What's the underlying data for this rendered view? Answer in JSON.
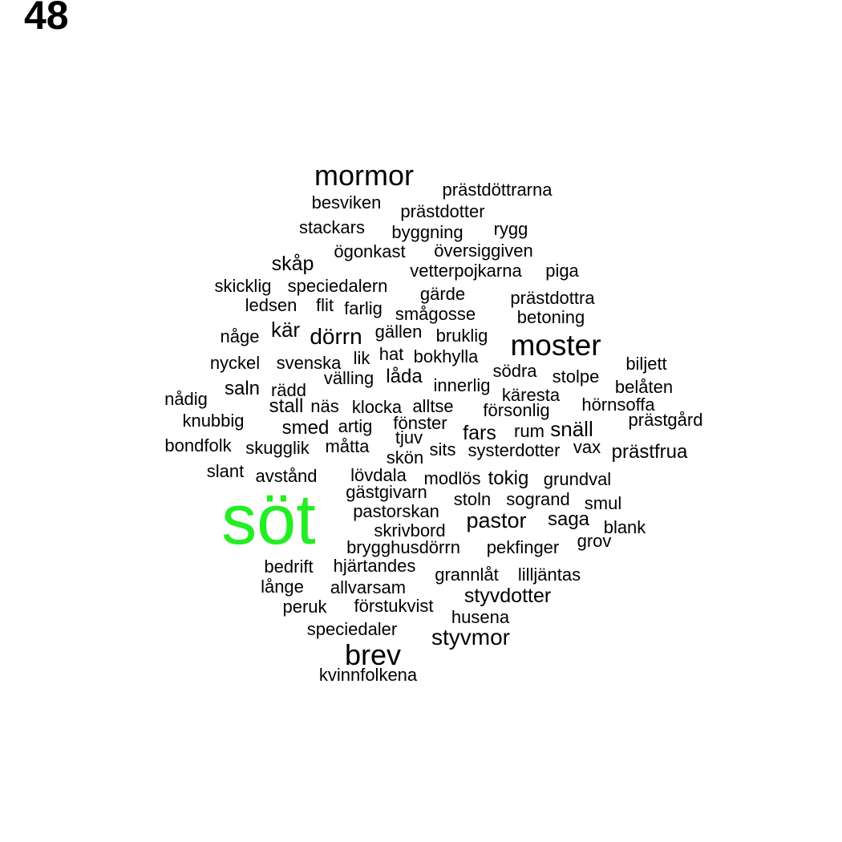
{
  "panel_label": "48",
  "colors": {
    "highlight": "#22ee22",
    "default": "#000000"
  },
  "words": [
    {
      "text": "söt",
      "highlight": true
    },
    {
      "text": "mormor"
    },
    {
      "text": "moster"
    },
    {
      "text": "brev"
    },
    {
      "text": "pastor"
    },
    {
      "text": "styvmor"
    },
    {
      "text": "prästdöttrarna"
    },
    {
      "text": "besviken"
    },
    {
      "text": "prästdotter"
    },
    {
      "text": "stackars"
    },
    {
      "text": "byggning"
    },
    {
      "text": "rygg"
    },
    {
      "text": "ögonkast"
    },
    {
      "text": "översiggiven"
    },
    {
      "text": "skåp"
    },
    {
      "text": "vetterpojkarna"
    },
    {
      "text": "piga"
    },
    {
      "text": "skicklig"
    },
    {
      "text": "speciedalern"
    },
    {
      "text": "gärde"
    },
    {
      "text": "prästdottra"
    },
    {
      "text": "ledsen"
    },
    {
      "text": "flit"
    },
    {
      "text": "farlig"
    },
    {
      "text": "smågosse"
    },
    {
      "text": "betoning"
    },
    {
      "text": "någe"
    },
    {
      "text": "kär"
    },
    {
      "text": "dörrn"
    },
    {
      "text": "gällen"
    },
    {
      "text": "bruklig"
    },
    {
      "text": "nyckel"
    },
    {
      "text": "svenska"
    },
    {
      "text": "lik"
    },
    {
      "text": "hat"
    },
    {
      "text": "bokhylla"
    },
    {
      "text": "biljett"
    },
    {
      "text": "välling"
    },
    {
      "text": "låda"
    },
    {
      "text": "södra"
    },
    {
      "text": "stolpe"
    },
    {
      "text": "saln"
    },
    {
      "text": "rädd"
    },
    {
      "text": "innerlig"
    },
    {
      "text": "belåten"
    },
    {
      "text": "nådig"
    },
    {
      "text": "käresta"
    },
    {
      "text": "stall"
    },
    {
      "text": "näs"
    },
    {
      "text": "klocka"
    },
    {
      "text": "alltse"
    },
    {
      "text": "hörnsoffa"
    },
    {
      "text": "försonlig"
    },
    {
      "text": "knubbig"
    },
    {
      "text": "fönster"
    },
    {
      "text": "prästgård"
    },
    {
      "text": "smed"
    },
    {
      "text": "artig"
    },
    {
      "text": "rum"
    },
    {
      "text": "snäll"
    },
    {
      "text": "fars"
    },
    {
      "text": "tjuv"
    },
    {
      "text": "bondfolk"
    },
    {
      "text": "skugglik"
    },
    {
      "text": "måtta"
    },
    {
      "text": "sits"
    },
    {
      "text": "systerdotter"
    },
    {
      "text": "vax"
    },
    {
      "text": "prästfrua"
    },
    {
      "text": "skön"
    },
    {
      "text": "slant"
    },
    {
      "text": "avstånd"
    },
    {
      "text": "lövdala"
    },
    {
      "text": "modlös"
    },
    {
      "text": "tokig"
    },
    {
      "text": "grundval"
    },
    {
      "text": "gästgivarn"
    },
    {
      "text": "stoln"
    },
    {
      "text": "sogrand"
    },
    {
      "text": "smul"
    },
    {
      "text": "pastorskan"
    },
    {
      "text": "saga"
    },
    {
      "text": "blank"
    },
    {
      "text": "skrivbord"
    },
    {
      "text": "grov"
    },
    {
      "text": "brygghusdörrn"
    },
    {
      "text": "pekfinger"
    },
    {
      "text": "bedrift"
    },
    {
      "text": "hjärtandes"
    },
    {
      "text": "grannlåt"
    },
    {
      "text": "lilljäntas"
    },
    {
      "text": "långe"
    },
    {
      "text": "allvarsam"
    },
    {
      "text": "styvdotter"
    },
    {
      "text": "peruk"
    },
    {
      "text": "förstukvist"
    },
    {
      "text": "husena"
    },
    {
      "text": "speciedaler"
    },
    {
      "text": "kvinnfolkena"
    }
  ]
}
